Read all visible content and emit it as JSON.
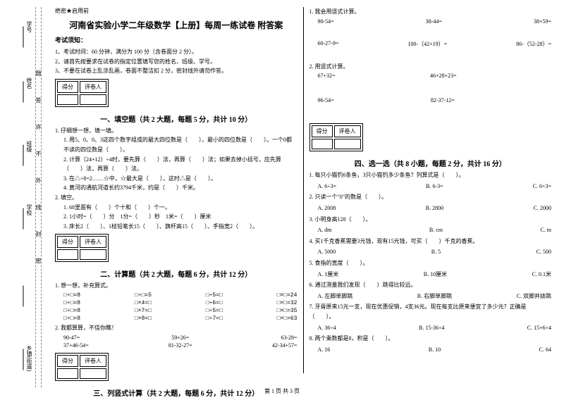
{
  "sidebar": {
    "labels": [
      "学号",
      "姓名",
      "班级",
      "学校",
      "",
      "乡镇(街道)"
    ],
    "chars": "题答许不外线封密"
  },
  "header": {
    "secret": "绝密★启用前",
    "title": "河南省实验小学二年级数学【上册】每周一练试卷 附答案",
    "notice_title": "考试须知：",
    "notices": [
      "1、考试时间：60 分钟，满分为 100 分（含卷面分 2 分）。",
      "2、请首先按要求在试卷的指定位置填写您的姓名、班级、学号。",
      "3、不要在试卷上乱涂乱画，卷面不整洁扣 2 分，密封线外请勿作答。"
    ]
  },
  "scorebox": {
    "c1": "得分",
    "c2": "评卷人"
  },
  "sec1": {
    "title": "一、填空题（共 2 大题，每题 5 分，共计 10 分）",
    "q1": "1. 仔细想一想，填一填。",
    "q1_items": [
      "1. 用5、0、0、3这四个数字组成的最大四位数是（　　），最小的四位数是（　　）。一个0都不读的四位数是（　　）。",
      "2. 计算（24+12）÷4时，要先算（　　）法，再算（　　）法；如果去掉小括号，应先算（　　）法，再算（　　）法。",
      "3. 在△÷8=2……☆中，☆最大是（　　），这时△是（　　）。",
      "4. 黄河的通航河道长约3794千米，约是（　　）千米。"
    ],
    "q2": "2. 填空。",
    "q2_items": [
      "1. 68里面有（　　）个十和（　　）个一。",
      "2. 1小时=（　　）分　1分=（　　）秒　1米=（　　）厘米",
      "3. 床长2（　　）、1枝铅笔长15（　　）、旗杆高15（　　）、手指宽2（　　）。"
    ]
  },
  "sec2": {
    "title": "二、计算题（共 2 大题，每题 6 分，共计 12 分）",
    "q1": "1. 想一想，补充算式。",
    "grid": [
      [
        "□÷□=8",
        "□÷□=5",
        "□÷5=□",
        "□×□=24"
      ],
      [
        "□÷□=8",
        "□×4=□",
        "□÷6=□",
        "□×□=32"
      ],
      [
        "□÷□=8",
        "□×7=□",
        "□÷5=□",
        "□×□=35"
      ],
      [
        "□÷□=8",
        "□×8=□",
        "□÷7=□",
        "□×□=63"
      ]
    ],
    "q2": "2. 我都算算，不信你瞧！",
    "calc": [
      [
        "90-47=",
        "59+26=",
        "63-28="
      ],
      [
        "37+46-54=",
        "81-32-27=",
        "42-34+57="
      ]
    ]
  },
  "sec3": {
    "title": "三、列竖式计算（共 2 大题，每题 6 分，共计 12 分）",
    "q1": "1. 我会用竖式计算。",
    "r1": [
      "90-54=",
      "38-44=",
      "38+59="
    ],
    "r2": [
      "60-27-9=",
      "100-（42+19）=",
      "86-（52-28）="
    ],
    "q2": "2. 用竖式计算。",
    "r3": [
      "67+32=",
      "46+28+23="
    ],
    "r4": [
      "96-54=",
      "82-37-12="
    ]
  },
  "sec4": {
    "title": "四、选一选（共 8 小题，每题 2 分，共计 16 分）",
    "items": [
      {
        "q": "1. 每只小猫钓6条鱼，3只小猫钓多少条鱼？列算式是（　　）。",
        "opts": [
          "A. 6÷3=",
          "B. 6-3=",
          "C. 6×3="
        ]
      },
      {
        "q": "2. 只读一个\"0\"的数是（　　）。",
        "opts": [
          "A. 2008",
          "B. 2800",
          "C. 2000"
        ]
      },
      {
        "q": "3. 小明身高128（　　）。",
        "opts": [
          "A. dm",
          "B. cm",
          "C. m"
        ]
      },
      {
        "q": "4. 买1千克香蕉需要3元钱，现有15元钱，可买（　　）千克的香蕉。",
        "opts": [
          "A. 5000",
          "B. 5",
          "C. 500"
        ]
      },
      {
        "q": "5. 食指的宽度（　　）。",
        "opts": [
          "A. 1厘米",
          "B. 10厘米",
          "C. 0.1米"
        ]
      },
      {
        "q": "6. 通过测量我们发现（　　）跳得比较远。",
        "opts": [
          "A. 左脚单脚跳",
          "B. 右脚单脚跳",
          "C. 双脚并拢跳"
        ]
      },
      {
        "q": "7. 牙膏原来15元一支，现在优惠促销，4支36元。现在每支比原来便宜了多少元？正确是（　　）。",
        "opts": [
          "A. 36÷4",
          "B. 15-36÷4",
          "C. 15+6÷4"
        ]
      },
      {
        "q": "8. 两个乘数都是8，积是（　　）。",
        "opts": [
          "A. 16",
          "B. 10",
          "C. 64"
        ]
      }
    ]
  },
  "footer": "第 1 页 共 3 页"
}
